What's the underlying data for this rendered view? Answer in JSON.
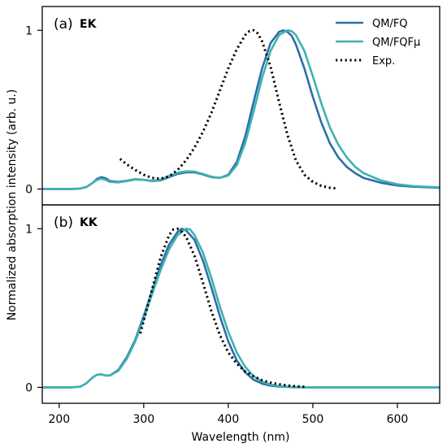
{
  "colors": {
    "qm_fq": "#2c6fa8",
    "qm_fqfmu": "#3fb1b0",
    "exp": "#000000",
    "axes": "#000000"
  },
  "chart_data": {
    "type": "line",
    "xlabel": "Wavelength (nm)",
    "ylabel": "Normalized absorption intensity (arb. u.)",
    "xlim": [
      180,
      650
    ],
    "xticks": [
      200,
      300,
      400,
      500,
      600
    ],
    "legend": {
      "placement": "top-right",
      "entries": [
        {
          "label": "QM/FQ",
          "series": "QM/FQ",
          "style": "solid"
        },
        {
          "label": "QM/FQFμ",
          "series": "QM/FQFmu",
          "style": "solid"
        },
        {
          "label": "Exp.",
          "series": "Exp.",
          "style": "dotted"
        }
      ]
    },
    "panels": [
      {
        "label": "(a)",
        "molecule": "EK",
        "ylim": [
          -0.1,
          1.15
        ],
        "yticks": [
          0,
          1
        ],
        "series": [
          {
            "name": "QM/FQ",
            "x": [
              180,
              200,
              215,
              225,
              232,
              240,
              245,
              250,
              255,
              260,
              270,
              280,
              290,
              300,
              310,
              320,
              330,
              340,
              350,
              360,
              370,
              380,
              390,
              400,
              410,
              420,
              430,
              440,
              450,
              460,
              465,
              470,
              475,
              480,
              490,
              500,
              510,
              520,
              530,
              540,
              550,
              560,
              580,
              600,
              620,
              650
            ],
            "y": [
              0.0,
              0.0,
              0.0,
              0.003,
              0.012,
              0.04,
              0.065,
              0.075,
              0.068,
              0.05,
              0.045,
              0.052,
              0.062,
              0.058,
              0.05,
              0.055,
              0.075,
              0.095,
              0.105,
              0.105,
              0.092,
              0.075,
              0.07,
              0.09,
              0.17,
              0.33,
              0.55,
              0.76,
              0.92,
              0.99,
              1.0,
              0.99,
              0.965,
              0.91,
              0.76,
              0.58,
              0.42,
              0.29,
              0.2,
              0.14,
              0.1,
              0.07,
              0.04,
              0.022,
              0.014,
              0.008
            ]
          },
          {
            "name": "QM/FQFmu",
            "x": [
              180,
              200,
              215,
              225,
              232,
              240,
              245,
              250,
              255,
              260,
              270,
              280,
              290,
              300,
              310,
              320,
              330,
              340,
              350,
              360,
              370,
              380,
              390,
              400,
              410,
              420,
              430,
              440,
              450,
              460,
              470,
              475,
              480,
              490,
              500,
              510,
              520,
              530,
              540,
              550,
              560,
              580,
              600,
              620,
              650
            ],
            "y": [
              0.0,
              0.0,
              0.0,
              0.003,
              0.012,
              0.04,
              0.058,
              0.065,
              0.058,
              0.045,
              0.042,
              0.05,
              0.06,
              0.058,
              0.052,
              0.06,
              0.082,
              0.102,
              0.112,
              0.11,
              0.095,
              0.078,
              0.07,
              0.085,
              0.15,
              0.29,
              0.49,
              0.7,
              0.87,
              0.97,
              1.0,
              0.995,
              0.97,
              0.87,
              0.71,
              0.54,
              0.39,
              0.28,
              0.2,
              0.14,
              0.1,
              0.055,
              0.03,
              0.018,
              0.01
            ]
          },
          {
            "name": "Exp.",
            "x": [
              272,
              280,
              290,
              300,
              310,
              320,
              330,
              340,
              350,
              360,
              370,
              380,
              390,
              400,
              410,
              420,
              425,
              430,
              435,
              440,
              450,
              460,
              470,
              480,
              490,
              500,
              510,
              520,
              530
            ],
            "y": [
              0.19,
              0.155,
              0.12,
              0.09,
              0.07,
              0.065,
              0.08,
              0.12,
              0.18,
              0.26,
              0.36,
              0.48,
              0.62,
              0.76,
              0.88,
              0.97,
              0.995,
              1.0,
              0.98,
              0.93,
              0.77,
              0.55,
              0.34,
              0.18,
              0.09,
              0.045,
              0.02,
              0.008,
              0.003
            ]
          }
        ]
      },
      {
        "label": "(b)",
        "molecule": "KK",
        "ylim": [
          -0.1,
          1.15
        ],
        "yticks": [
          0,
          1
        ],
        "series": [
          {
            "name": "QM/FQ",
            "x": [
              180,
              200,
              215,
              225,
              232,
              240,
              245,
              250,
              255,
              260,
              270,
              280,
              290,
              300,
              310,
              320,
              330,
              340,
              345,
              350,
              360,
              370,
              380,
              390,
              400,
              410,
              420,
              430,
              440,
              450,
              460,
              480,
              500,
              520,
              550,
              600,
              650
            ],
            "y": [
              0.0,
              0.0,
              0.0,
              0.005,
              0.025,
              0.065,
              0.08,
              0.082,
              0.075,
              0.075,
              0.11,
              0.19,
              0.3,
              0.45,
              0.61,
              0.77,
              0.9,
              0.98,
              1.0,
              0.99,
              0.93,
              0.8,
              0.63,
              0.45,
              0.29,
              0.17,
              0.095,
              0.048,
              0.024,
              0.011,
              0.005,
              0.001,
              0.0,
              0.0,
              0.0,
              0.0,
              0.0
            ]
          },
          {
            "name": "QM/FQFmu",
            "x": [
              180,
              200,
              215,
              225,
              232,
              240,
              245,
              250,
              255,
              260,
              270,
              280,
              290,
              300,
              310,
              320,
              330,
              340,
              350,
              355,
              360,
              370,
              380,
              390,
              400,
              410,
              420,
              430,
              440,
              450,
              460,
              480,
              500,
              520,
              550,
              600,
              650
            ],
            "y": [
              0.0,
              0.0,
              0.0,
              0.005,
              0.025,
              0.065,
              0.08,
              0.082,
              0.075,
              0.075,
              0.105,
              0.18,
              0.29,
              0.43,
              0.59,
              0.74,
              0.87,
              0.96,
              1.0,
              0.995,
              0.96,
              0.85,
              0.69,
              0.51,
              0.35,
              0.22,
              0.13,
              0.07,
              0.036,
              0.018,
              0.008,
              0.002,
              0.0,
              0.0,
              0.0,
              0.0,
              0.0
            ]
          },
          {
            "name": "Exp.",
            "x": [
              296,
              300,
              310,
              320,
              330,
              335,
              340,
              345,
              350,
              360,
              370,
              380,
              390,
              400,
              410,
              420,
              430,
              440,
              450,
              460,
              470,
              480,
              490
            ],
            "y": [
              0.34,
              0.42,
              0.62,
              0.82,
              0.96,
              0.995,
              1.0,
              0.98,
              0.95,
              0.83,
              0.66,
              0.48,
              0.33,
              0.22,
              0.15,
              0.1,
              0.07,
              0.045,
              0.03,
              0.02,
              0.012,
              0.007,
              0.004
            ]
          }
        ]
      }
    ]
  }
}
